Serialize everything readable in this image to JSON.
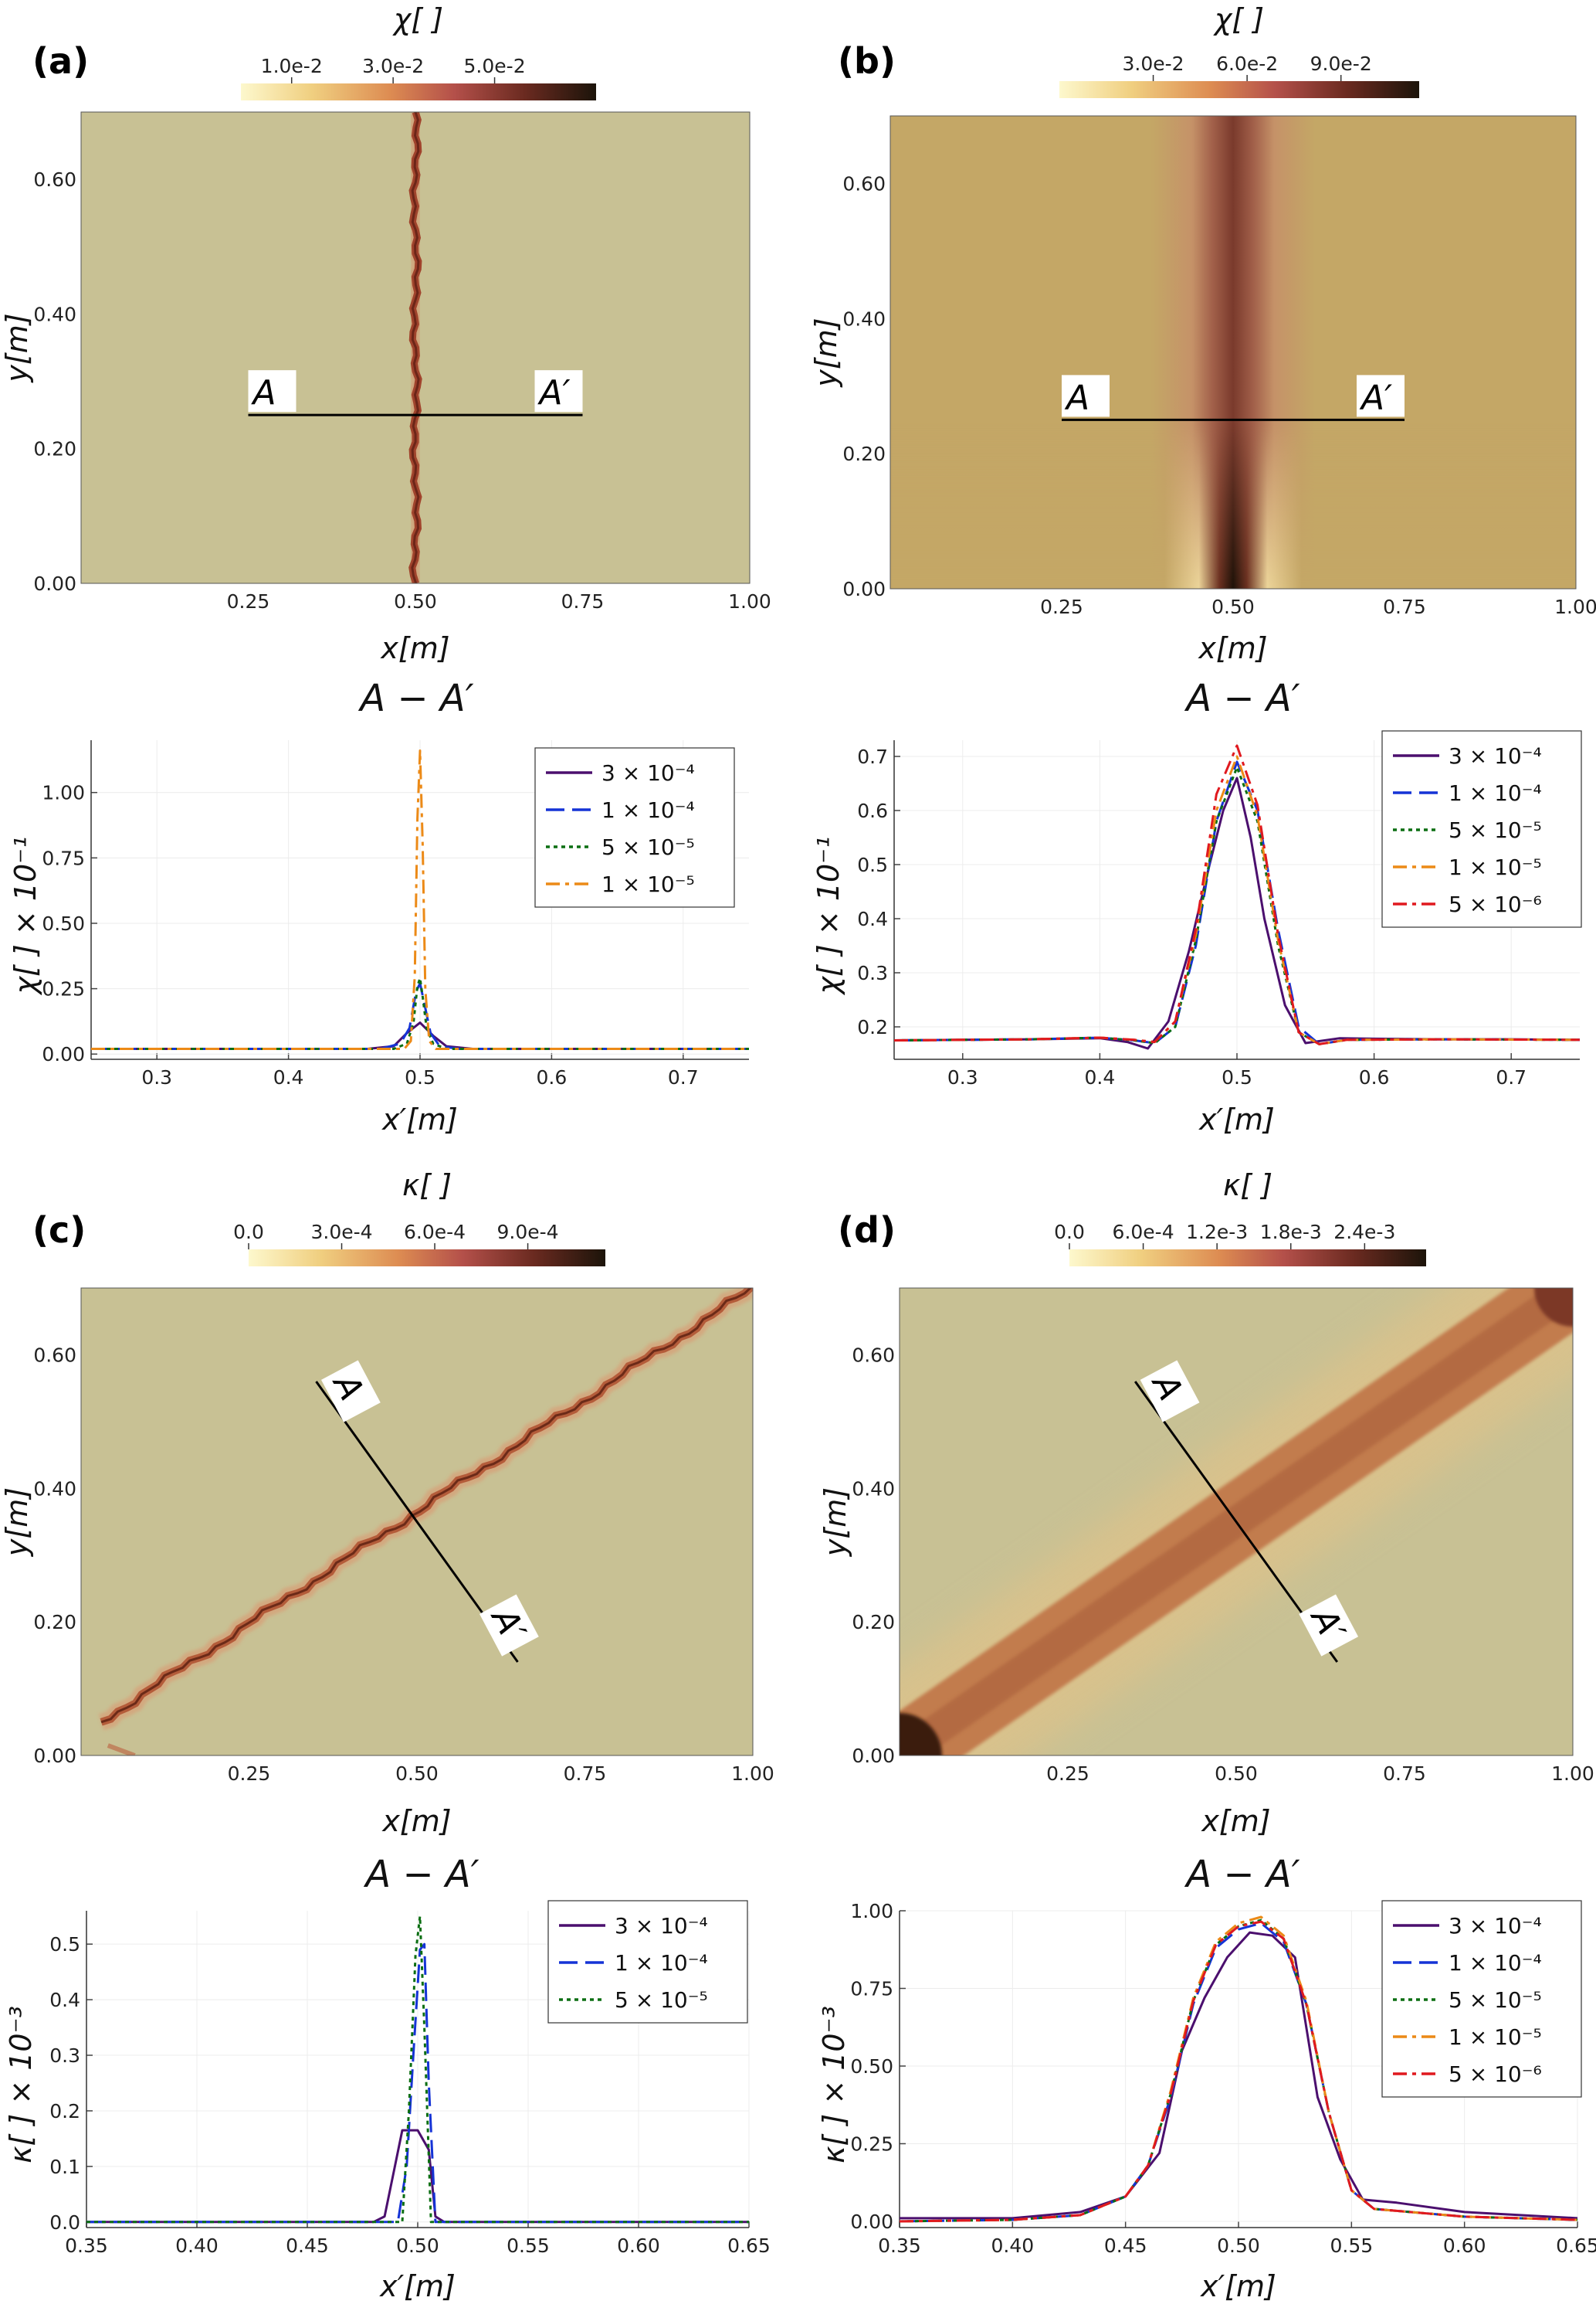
{
  "panels": [
    {
      "letter": "(a)",
      "map": {
        "colorbar_title": "χ[ ]",
        "colorbar_ticks": [
          "1.0e-2",
          "3.0e-2",
          "5.0e-2"
        ],
        "colorbar_range": [
          0.0,
          0.07
        ],
        "colorbar_tick_values": [
          0.01,
          0.03,
          0.05
        ],
        "xlabel": "x[m]",
        "ylabel": "y[m]",
        "xticks": [
          "0.25",
          "0.50",
          "0.75",
          "1.00"
        ],
        "yticks": [
          "0.00",
          "0.20",
          "0.40",
          "0.60"
        ],
        "xlim": [
          0.0,
          1.0
        ],
        "ylim": [
          0.0,
          0.7
        ],
        "line_labels": [
          "A",
          "A′"
        ],
        "line_from": [
          0.25,
          0.25
        ],
        "line_to": [
          0.75,
          0.25
        ],
        "pattern": "vertical-narrow"
      },
      "profile": {
        "title": "A − A′",
        "xlabel": "x′[m]",
        "ylabel": "χ[ ] × 10⁻¹",
        "xlim": [
          0.25,
          0.75
        ],
        "ylim": [
          -0.02,
          1.2
        ],
        "xticks": [
          "0.3",
          "0.4",
          "0.5",
          "0.6",
          "0.7"
        ],
        "yticks": [
          "0.00",
          "0.25",
          "0.50",
          "0.75",
          "1.00"
        ]
      }
    },
    {
      "letter": "(b)",
      "map": {
        "colorbar_title": "χ[ ]",
        "colorbar_ticks": [
          "3.0e-2",
          "6.0e-2",
          "9.0e-2"
        ],
        "colorbar_range": [
          0.0,
          0.115
        ],
        "colorbar_tick_values": [
          0.03,
          0.06,
          0.09
        ],
        "xlabel": "x[m]",
        "ylabel": "y[m]",
        "xticks": [
          "0.25",
          "0.50",
          "0.75",
          "1.00"
        ],
        "yticks": [
          "0.00",
          "0.20",
          "0.40",
          "0.60"
        ],
        "xlim": [
          0.0,
          1.0
        ],
        "ylim": [
          0.0,
          0.7
        ],
        "line_labels": [
          "A",
          "A′"
        ],
        "line_from": [
          0.25,
          0.25
        ],
        "line_to": [
          0.75,
          0.25
        ],
        "pattern": "vertical-wide"
      },
      "profile": {
        "title": "A − A′",
        "xlabel": "x′[m]",
        "ylabel": "χ[ ] × 10⁻¹",
        "xlim": [
          0.25,
          0.75
        ],
        "ylim": [
          0.14,
          0.73
        ],
        "xticks": [
          "0.3",
          "0.4",
          "0.5",
          "0.6",
          "0.7"
        ],
        "yticks": [
          "0.2",
          "0.3",
          "0.4",
          "0.5",
          "0.6",
          "0.7"
        ]
      }
    },
    {
      "letter": "(c)",
      "map": {
        "colorbar_title": "κ[ ]",
        "colorbar_ticks": [
          "0.0",
          "3.0e-4",
          "6.0e-4",
          "9.0e-4"
        ],
        "colorbar_range": [
          0.0,
          0.00115
        ],
        "colorbar_tick_values": [
          0.0,
          0.0003,
          0.0006,
          0.0009
        ],
        "xlabel": "x[m]",
        "ylabel": "y[m]",
        "xticks": [
          "0.25",
          "0.50",
          "0.75",
          "1.00"
        ],
        "yticks": [
          "0.00",
          "0.20",
          "0.40",
          "0.60"
        ],
        "xlim": [
          0.0,
          1.0
        ],
        "ylim": [
          0.0,
          0.7
        ],
        "line_labels": [
          "A",
          "A′"
        ],
        "line_from": [
          0.35,
          0.56
        ],
        "line_to": [
          0.65,
          0.14
        ],
        "pattern": "diagonal-narrow"
      },
      "profile": {
        "title": "A − A′",
        "xlabel": "x′[m]",
        "ylabel": "κ[ ] × 10⁻³",
        "xlim": [
          0.35,
          0.65
        ],
        "ylim": [
          -0.01,
          0.56
        ],
        "xticks": [
          "0.35",
          "0.40",
          "0.45",
          "0.50",
          "0.55",
          "0.60",
          "0.65"
        ],
        "yticks": [
          "0.0",
          "0.1",
          "0.2",
          "0.3",
          "0.4",
          "0.5"
        ]
      }
    },
    {
      "letter": "(d)",
      "map": {
        "colorbar_title": "κ[ ]",
        "colorbar_ticks": [
          "0.0",
          "6.0e-4",
          "1.2e-3",
          "1.8e-3",
          "2.4e-3"
        ],
        "colorbar_range": [
          0.0,
          0.0029
        ],
        "colorbar_tick_values": [
          0.0,
          0.0006,
          0.0012,
          0.0018,
          0.0024
        ],
        "xlabel": "x[m]",
        "ylabel": "y[m]",
        "xticks": [
          "0.25",
          "0.50",
          "0.75",
          "1.00"
        ],
        "yticks": [
          "0.00",
          "0.20",
          "0.40",
          "0.60"
        ],
        "xlim": [
          0.0,
          1.0
        ],
        "ylim": [
          0.0,
          0.7
        ],
        "line_labels": [
          "A",
          "A′"
        ],
        "line_from": [
          0.35,
          0.56
        ],
        "line_to": [
          0.65,
          0.14
        ],
        "pattern": "diagonal-wide"
      },
      "profile": {
        "title": "A − A′",
        "xlabel": "x′[m]",
        "ylabel": "κ[ ] × 10⁻³",
        "xlim": [
          0.35,
          0.65
        ],
        "ylim": [
          -0.02,
          1.0
        ],
        "xticks": [
          "0.35",
          "0.40",
          "0.45",
          "0.50",
          "0.55",
          "0.60",
          "0.65"
        ],
        "yticks": [
          "0.00",
          "0.25",
          "0.50",
          "0.75",
          "1.00"
        ]
      }
    }
  ],
  "series_styles": {
    "3 × 10⁻⁴": {
      "color": "#4b0f6e",
      "dash": "none"
    },
    "1 × 10⁻⁴": {
      "color": "#1533d6",
      "dash": "24,10"
    },
    "5 × 10⁻⁵": {
      "color": "#0b6e12",
      "dash": "5,5"
    },
    "1 × 10⁻⁵": {
      "color": "#ec8a17",
      "dash": "18,7,5,7"
    },
    "5 × 10⁻⁶": {
      "color": "#e0191f",
      "dash": "18,7,5,7"
    }
  },
  "chart_data": [
    {
      "panel": "(a)",
      "type": "line",
      "title": "A − A′",
      "xlabel": "x′[m]",
      "ylabel": "χ[ ] × 10⁻¹",
      "xlim": [
        0.25,
        0.75
      ],
      "ylim": [
        -0.02,
        1.2
      ],
      "legend": "top-right",
      "series": [
        {
          "name": "3 × 10⁻⁴",
          "x": [
            0.25,
            0.46,
            0.48,
            0.49,
            0.5,
            0.51,
            0.52,
            0.54,
            0.75
          ],
          "y": [
            0.02,
            0.02,
            0.03,
            0.08,
            0.12,
            0.07,
            0.03,
            0.02,
            0.02
          ]
        },
        {
          "name": "1 × 10⁻⁴",
          "x": [
            0.25,
            0.47,
            0.485,
            0.492,
            0.497,
            0.5,
            0.503,
            0.508,
            0.515,
            0.53,
            0.75
          ],
          "y": [
            0.02,
            0.02,
            0.04,
            0.1,
            0.24,
            0.27,
            0.2,
            0.08,
            0.03,
            0.02,
            0.02
          ]
        },
        {
          "name": "5 × 10⁻⁵",
          "x": [
            0.25,
            0.48,
            0.49,
            0.495,
            0.498,
            0.5,
            0.502,
            0.505,
            0.51,
            0.52,
            0.75
          ],
          "y": [
            0.02,
            0.02,
            0.04,
            0.12,
            0.26,
            0.29,
            0.22,
            0.1,
            0.04,
            0.02,
            0.02
          ]
        },
        {
          "name": "1 × 10⁻⁵",
          "x": [
            0.25,
            0.488,
            0.493,
            0.496,
            0.498,
            0.5,
            0.502,
            0.504,
            0.507,
            0.512,
            0.75
          ],
          "y": [
            0.02,
            0.02,
            0.05,
            0.3,
            0.9,
            1.16,
            0.8,
            0.25,
            0.05,
            0.02,
            0.02
          ]
        }
      ]
    },
    {
      "panel": "(b)",
      "type": "line",
      "title": "A − A′",
      "xlabel": "x′[m]",
      "ylabel": "χ[ ] × 10⁻¹",
      "xlim": [
        0.25,
        0.75
      ],
      "ylim": [
        0.14,
        0.73
      ],
      "legend": "top-right",
      "series": [
        {
          "name": "3 × 10⁻⁴",
          "x": [
            0.25,
            0.3,
            0.35,
            0.4,
            0.42,
            0.435,
            0.45,
            0.465,
            0.48,
            0.49,
            0.5,
            0.51,
            0.52,
            0.535,
            0.55,
            0.575,
            0.6,
            0.65,
            0.7,
            0.75
          ],
          "y": [
            0.175,
            0.176,
            0.177,
            0.179,
            0.172,
            0.16,
            0.21,
            0.34,
            0.5,
            0.6,
            0.66,
            0.55,
            0.4,
            0.24,
            0.17,
            0.179,
            0.178,
            0.177,
            0.177,
            0.176
          ]
        },
        {
          "name": "1 × 10⁻⁴",
          "x": [
            0.25,
            0.3,
            0.35,
            0.4,
            0.425,
            0.44,
            0.455,
            0.47,
            0.485,
            0.5,
            0.515,
            0.53,
            0.545,
            0.56,
            0.58,
            0.65,
            0.75
          ],
          "y": [
            0.175,
            0.176,
            0.177,
            0.18,
            0.175,
            0.17,
            0.2,
            0.35,
            0.58,
            0.69,
            0.6,
            0.38,
            0.2,
            0.168,
            0.176,
            0.177,
            0.176
          ]
        },
        {
          "name": "5 × 10⁻⁵",
          "x": [
            0.25,
            0.3,
            0.35,
            0.4,
            0.425,
            0.44,
            0.455,
            0.47,
            0.485,
            0.5,
            0.515,
            0.53,
            0.545,
            0.56,
            0.58,
            0.65,
            0.75
          ],
          "y": [
            0.175,
            0.176,
            0.177,
            0.18,
            0.175,
            0.17,
            0.2,
            0.36,
            0.58,
            0.68,
            0.58,
            0.35,
            0.19,
            0.168,
            0.176,
            0.177,
            0.176
          ]
        },
        {
          "name": "1 × 10⁻⁵",
          "x": [
            0.25,
            0.3,
            0.35,
            0.4,
            0.425,
            0.44,
            0.455,
            0.47,
            0.485,
            0.5,
            0.515,
            0.53,
            0.545,
            0.56,
            0.58,
            0.65,
            0.75
          ],
          "y": [
            0.175,
            0.176,
            0.177,
            0.18,
            0.176,
            0.172,
            0.21,
            0.37,
            0.6,
            0.7,
            0.59,
            0.36,
            0.19,
            0.168,
            0.176,
            0.177,
            0.176
          ]
        },
        {
          "name": "5 × 10⁻⁶",
          "x": [
            0.25,
            0.3,
            0.35,
            0.4,
            0.425,
            0.44,
            0.455,
            0.47,
            0.485,
            0.5,
            0.515,
            0.53,
            0.545,
            0.56,
            0.58,
            0.65,
            0.75
          ],
          "y": [
            0.175,
            0.176,
            0.177,
            0.18,
            0.176,
            0.172,
            0.21,
            0.38,
            0.63,
            0.72,
            0.61,
            0.37,
            0.19,
            0.168,
            0.176,
            0.177,
            0.176
          ]
        }
      ]
    },
    {
      "panel": "(c)",
      "type": "line",
      "title": "A − A′",
      "xlabel": "x′[m]",
      "ylabel": "κ[ ] × 10⁻³",
      "xlim": [
        0.35,
        0.65
      ],
      "ylim": [
        -0.01,
        0.56
      ],
      "legend": "top-right",
      "series": [
        {
          "name": "3 × 10⁻⁴",
          "x": [
            0.35,
            0.48,
            0.485,
            0.493,
            0.5,
            0.505,
            0.508,
            0.512,
            0.65
          ],
          "y": [
            0.0,
            0.0,
            0.01,
            0.165,
            0.165,
            0.13,
            0.01,
            0.0,
            0.0
          ]
        },
        {
          "name": "1 × 10⁻⁴",
          "x": [
            0.35,
            0.491,
            0.495,
            0.498,
            0.501,
            0.503,
            0.505,
            0.508,
            0.65
          ],
          "y": [
            0.0,
            0.0,
            0.1,
            0.3,
            0.49,
            0.5,
            0.25,
            0.0,
            0.0
          ]
        },
        {
          "name": "5 × 10⁻⁵",
          "x": [
            0.35,
            0.493,
            0.496,
            0.499,
            0.501,
            0.503,
            0.506,
            0.65
          ],
          "y": [
            0.0,
            0.0,
            0.2,
            0.48,
            0.55,
            0.35,
            0.0,
            0.0
          ]
        }
      ]
    },
    {
      "panel": "(d)",
      "type": "line",
      "title": "A − A′",
      "xlabel": "x′[m]",
      "ylabel": "κ[ ] × 10⁻³",
      "xlim": [
        0.35,
        0.65
      ],
      "ylim": [
        -0.02,
        1.0
      ],
      "legend": "top-right",
      "series": [
        {
          "name": "3 × 10⁻⁴",
          "x": [
            0.35,
            0.4,
            0.43,
            0.45,
            0.465,
            0.475,
            0.485,
            0.495,
            0.505,
            0.515,
            0.525,
            0.535,
            0.545,
            0.555,
            0.57,
            0.6,
            0.65
          ],
          "y": [
            0.01,
            0.01,
            0.03,
            0.08,
            0.22,
            0.55,
            0.72,
            0.85,
            0.93,
            0.92,
            0.85,
            0.4,
            0.2,
            0.07,
            0.06,
            0.03,
            0.01
          ]
        },
        {
          "name": "1 × 10⁻⁴",
          "x": [
            0.35,
            0.4,
            0.43,
            0.45,
            0.46,
            0.47,
            0.48,
            0.49,
            0.5,
            0.51,
            0.52,
            0.53,
            0.54,
            0.55,
            0.56,
            0.6,
            0.65
          ],
          "y": [
            0.0,
            0.005,
            0.02,
            0.08,
            0.18,
            0.4,
            0.7,
            0.88,
            0.94,
            0.96,
            0.9,
            0.7,
            0.35,
            0.1,
            0.04,
            0.015,
            0.005
          ]
        },
        {
          "name": "5 × 10⁻⁵",
          "x": [
            0.35,
            0.4,
            0.43,
            0.45,
            0.46,
            0.47,
            0.48,
            0.49,
            0.5,
            0.51,
            0.52,
            0.53,
            0.54,
            0.55,
            0.56,
            0.6,
            0.65
          ],
          "y": [
            0.0,
            0.005,
            0.02,
            0.08,
            0.18,
            0.41,
            0.71,
            0.89,
            0.95,
            0.97,
            0.91,
            0.7,
            0.35,
            0.1,
            0.04,
            0.015,
            0.005
          ]
        },
        {
          "name": "1 × 10⁻⁵",
          "x": [
            0.35,
            0.4,
            0.43,
            0.45,
            0.46,
            0.47,
            0.48,
            0.49,
            0.5,
            0.51,
            0.52,
            0.53,
            0.54,
            0.55,
            0.56,
            0.6,
            0.65
          ],
          "y": [
            0.0,
            0.005,
            0.02,
            0.08,
            0.18,
            0.42,
            0.72,
            0.9,
            0.96,
            0.98,
            0.92,
            0.71,
            0.35,
            0.1,
            0.04,
            0.015,
            0.005
          ]
        },
        {
          "name": "5 × 10⁻⁶",
          "x": [
            0.35,
            0.4,
            0.43,
            0.45,
            0.46,
            0.47,
            0.48,
            0.49,
            0.5,
            0.51,
            0.52,
            0.53,
            0.54,
            0.55,
            0.56,
            0.6,
            0.65
          ],
          "y": [
            0.0,
            0.005,
            0.02,
            0.08,
            0.18,
            0.41,
            0.71,
            0.89,
            0.95,
            0.965,
            0.91,
            0.7,
            0.35,
            0.1,
            0.04,
            0.015,
            0.005
          ]
        }
      ]
    }
  ]
}
